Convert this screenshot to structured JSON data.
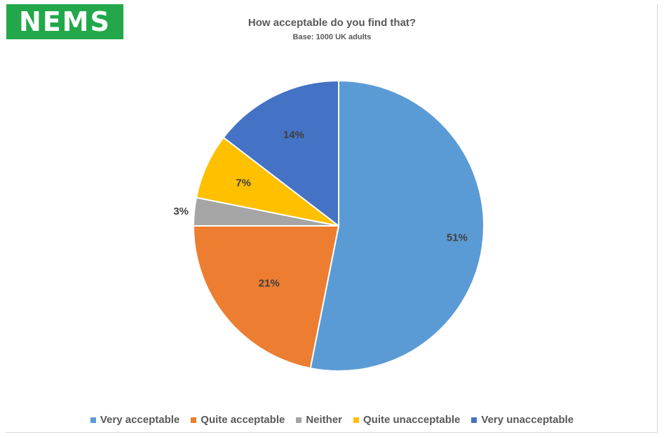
{
  "logo": {
    "text": "NEMS",
    "color": "#22a84a"
  },
  "chart_data": {
    "type": "pie",
    "title": "How acceptable do you find that?",
    "subtitle": "Base: 1000 UK adults",
    "categories": [
      "Very acceptable",
      "Quite acceptable",
      "Neither",
      "Quite unacceptable",
      "Very unacceptable"
    ],
    "values": [
      51,
      21,
      3,
      7,
      14
    ],
    "labels": [
      "51%",
      "21%",
      "3%",
      "7%",
      "14%"
    ],
    "colors": [
      "#5b9bd5",
      "#ed7d31",
      "#a5a5a5",
      "#ffc000",
      "#4472c4"
    ],
    "start": "12 o'clock",
    "direction": "clockwise",
    "legend_position": "bottom"
  }
}
